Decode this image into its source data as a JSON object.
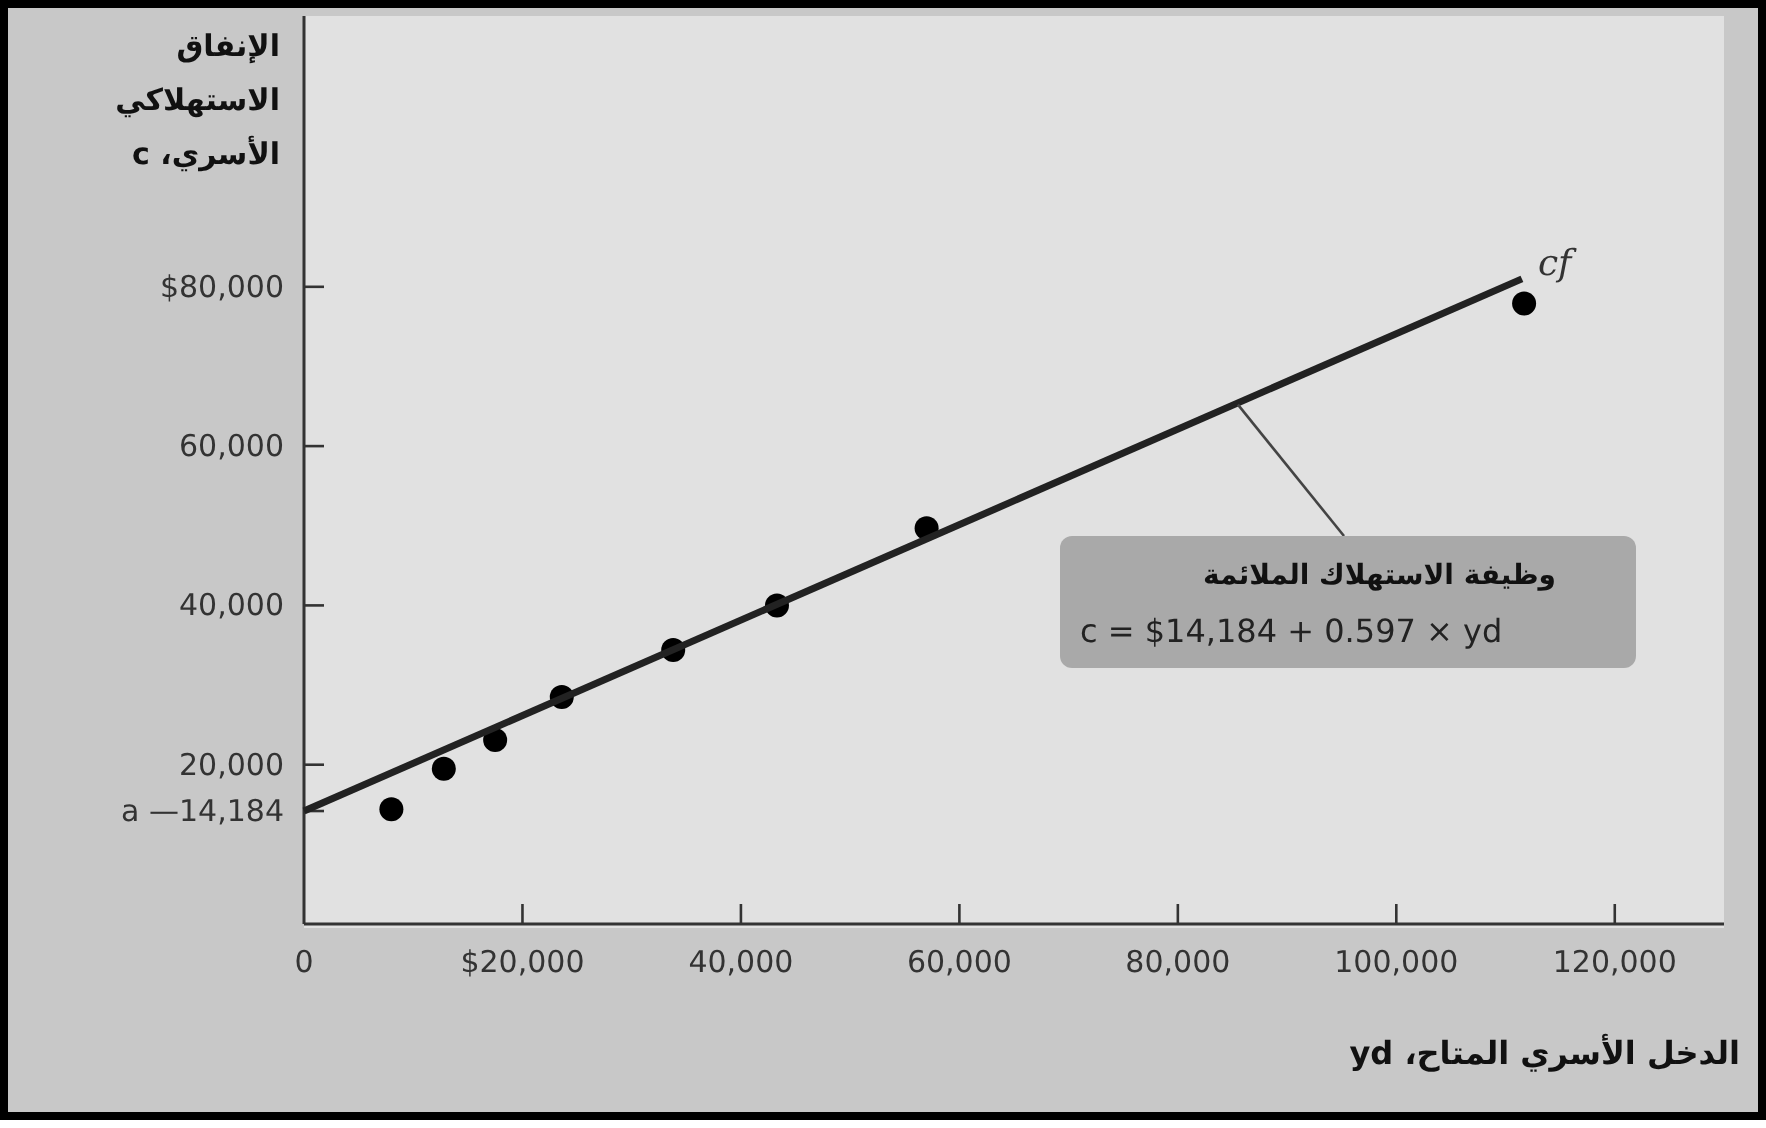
{
  "chart_data": {
    "type": "scatter",
    "xlabel": "الدخل الأسري المتاح، yd",
    "ylabel": "الإنفاق الاستهلاكي الأسري، c",
    "xlim": [
      0,
      130000
    ],
    "ylim": [
      0,
      114000
    ],
    "xticks": [
      {
        "value": 0,
        "label": "0"
      },
      {
        "value": 20000,
        "label": "$20,000"
      },
      {
        "value": 40000,
        "label": "40,000"
      },
      {
        "value": 60000,
        "label": "60,000"
      },
      {
        "value": 80000,
        "label": "80,000"
      },
      {
        "value": 100000,
        "label": "100,000"
      },
      {
        "value": 120000,
        "label": "120,000"
      }
    ],
    "yticks": [
      {
        "value": 14184,
        "label": "a —14,184"
      },
      {
        "value": 20000,
        "label": "20,000"
      },
      {
        "value": 40000,
        "label": "40,000"
      },
      {
        "value": 60000,
        "label": "60,000"
      },
      {
        "value": 80000,
        "label": "$80,000"
      }
    ],
    "marker": "circle",
    "series": [
      {
        "color": "#000000",
        "x": [
          8000,
          12800,
          17500,
          23600,
          33800,
          43300,
          57000,
          111700
        ],
        "values": [
          14400,
          19500,
          23100,
          28500,
          34400,
          40000,
          49700,
          77900
        ]
      },
      {
        "type": "line",
        "marker": "none",
        "color": "#222222",
        "x": [
          0,
          111500
        ],
        "values": [
          14184,
          81000
        ]
      }
    ],
    "annotations": [
      {
        "text": "cf",
        "x": 111500,
        "y": 81000
      },
      {
        "text": "وظيفة الاستهلاك الملائمة",
        "x": 85500,
        "y": 65200
      },
      "c = $14,184 + 0.597 × yd"
    ]
  }
}
